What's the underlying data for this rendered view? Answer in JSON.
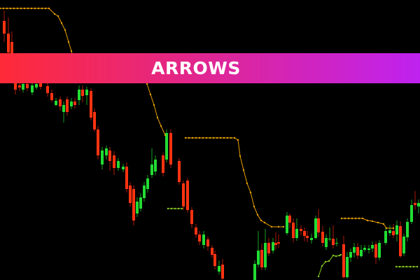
{
  "banner": {
    "title": "ARROWS",
    "gradient_start": "#ff2a38",
    "gradient_end": "#bf22f0"
  },
  "chart": {
    "type": "candlestick",
    "background": "#000000",
    "bull_color": "#22dd33",
    "bear_color": "#ff3311",
    "trail_stop_color": "#e8a000",
    "trail_up_color": "#88cc22"
  }
}
